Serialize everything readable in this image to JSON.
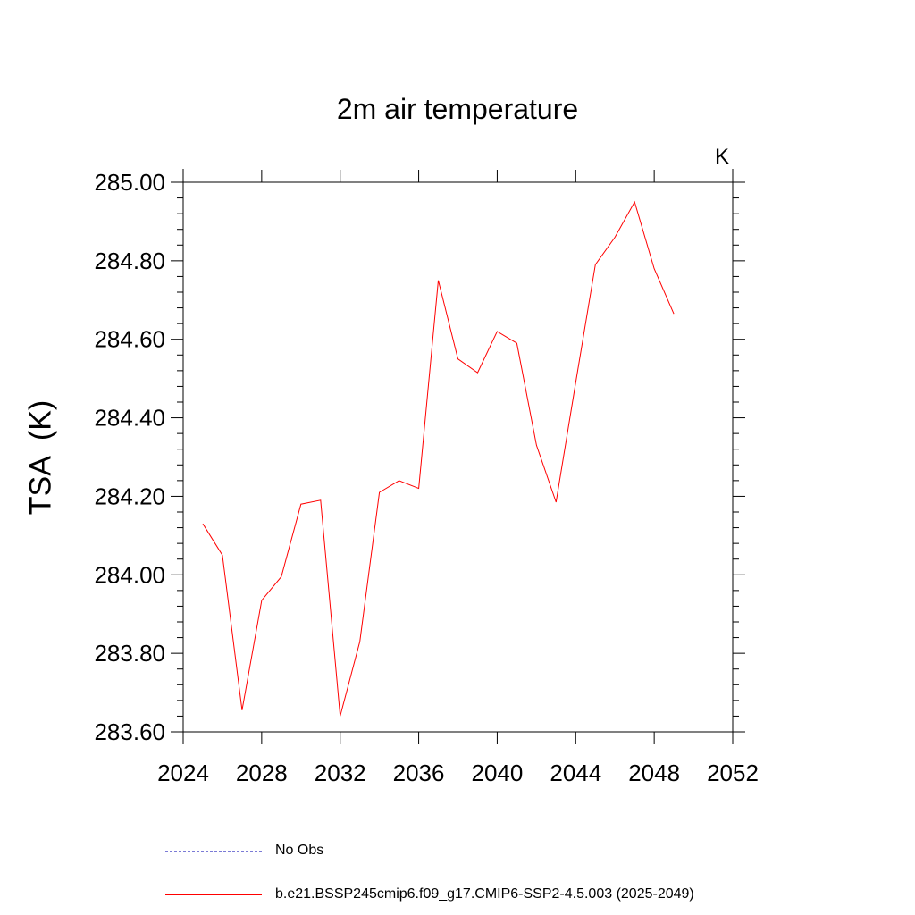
{
  "title": "2m air temperature",
  "units": "K",
  "ylabel": "TSA  (K)",
  "legend": [
    {
      "label": "No Obs",
      "color": "#7b7bd6",
      "style": "dashed"
    },
    {
      "label": "b.e21.BSSP245cmip6.f09_g17.CMIP6-SSP2-4.5.003 (2025-2049)",
      "color": "#ff0000",
      "style": "solid"
    }
  ],
  "chart_data": {
    "type": "line",
    "title": "2m air temperature",
    "xlabel": "",
    "ylabel": "TSA  (K)",
    "xlim": [
      2024,
      2052
    ],
    "ylim": [
      283.6,
      285.0
    ],
    "xticks": [
      2024,
      2028,
      2032,
      2036,
      2040,
      2044,
      2048,
      2052
    ],
    "yticks": [
      "283.60",
      "283.80",
      "284.00",
      "284.20",
      "284.40",
      "284.60",
      "284.80",
      "285.00"
    ],
    "grid": false,
    "legend_position": "bottom",
    "series": [
      {
        "name": "b.e21.BSSP245cmip6.f09_g17.CMIP6-SSP2-4.5.003 (2025-2049)",
        "color": "#ff0000",
        "x": [
          2025,
          2026,
          2027,
          2028,
          2029,
          2030,
          2031,
          2032,
          2033,
          2034,
          2035,
          2036,
          2037,
          2038,
          2039,
          2040,
          2041,
          2042,
          2043,
          2044,
          2045,
          2046,
          2047,
          2048,
          2049
        ],
        "y": [
          284.13,
          284.05,
          283.655,
          283.935,
          283.995,
          284.18,
          284.19,
          283.64,
          283.83,
          284.21,
          284.24,
          284.22,
          284.75,
          284.55,
          284.515,
          284.62,
          284.59,
          284.33,
          284.185,
          284.49,
          284.79,
          284.86,
          284.95,
          284.78,
          284.665
        ]
      }
    ]
  }
}
